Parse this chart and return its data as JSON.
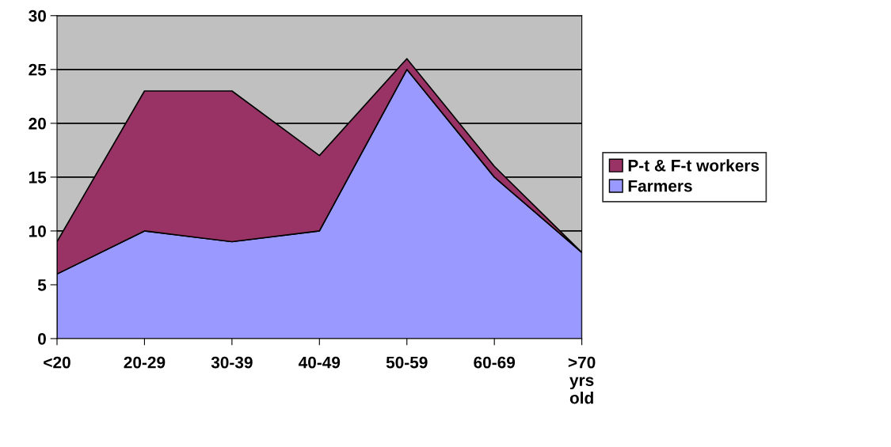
{
  "chart_data": {
    "type": "area",
    "stacked": true,
    "categories": [
      "<20",
      "20-29",
      "30-39",
      "40-49",
      "50-59",
      "60-69",
      ">70 yrs old"
    ],
    "series": [
      {
        "name": "Farmers",
        "color": "#9999ff",
        "values": [
          6,
          10,
          9,
          10,
          25,
          15,
          8
        ]
      },
      {
        "name": "P-t & F-t workers",
        "color": "#993366",
        "values": [
          3,
          13,
          14,
          7,
          1,
          1,
          0
        ]
      }
    ],
    "ylim": [
      0,
      30
    ],
    "yticks": [
      0,
      5,
      10,
      15,
      20,
      25,
      30
    ],
    "grid": "y",
    "legend": "right"
  }
}
